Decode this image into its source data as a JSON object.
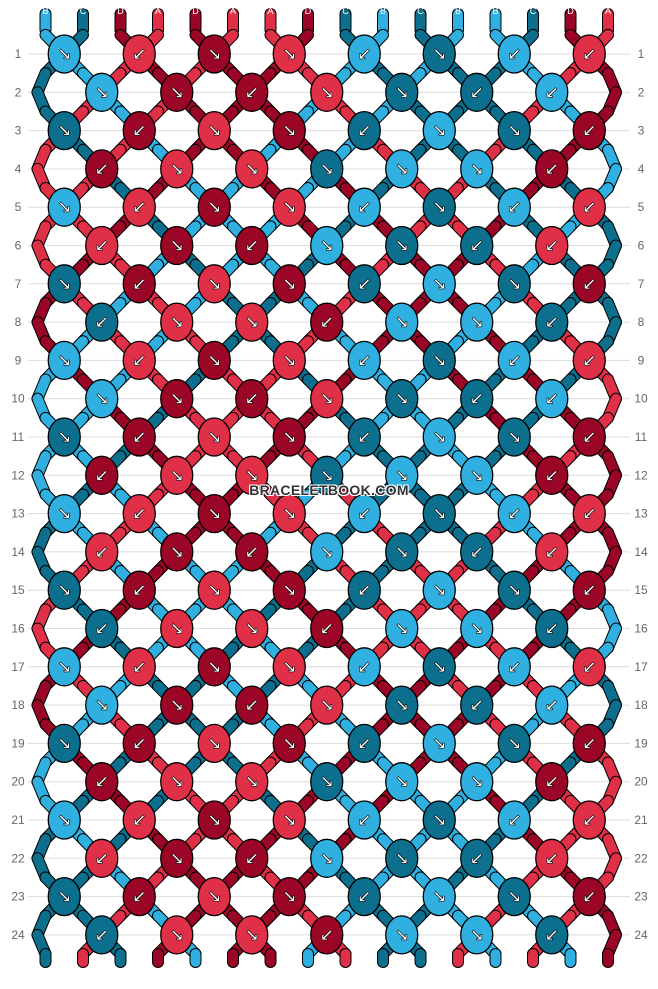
{
  "watermark": "BRACELETBOOK.COM",
  "colors": {
    "A": "#e03048",
    "B": "#30b0e0",
    "C": "#0d6f8e",
    "D": "#9c0626"
  },
  "strings_top": [
    "B",
    "C",
    "D",
    "A",
    "D",
    "A",
    "A",
    "D",
    "C",
    "B",
    "C",
    "B",
    "B",
    "C",
    "D",
    "A"
  ],
  "strings_bottom": [
    "B",
    "C",
    "D",
    "A",
    "D",
    "A",
    "A",
    "D",
    "C",
    "B",
    "C",
    "B",
    "B",
    "C",
    "D",
    "A"
  ],
  "row_numbers": [
    "1",
    "2",
    "3",
    "4",
    "5",
    "6",
    "7",
    "8",
    "9",
    "10",
    "11",
    "12",
    "13",
    "14",
    "15",
    "16",
    "17",
    "18",
    "19",
    "20",
    "21",
    "22",
    "23",
    "24"
  ],
  "knots": [
    [
      [
        "B",
        "↘"
      ],
      [
        "A",
        "↙"
      ],
      [
        "D",
        "↘"
      ],
      [
        "A",
        "↘"
      ],
      [
        "B",
        "↙"
      ],
      [
        "C",
        "↘"
      ],
      [
        "B",
        "↙"
      ],
      [
        "A",
        "↙"
      ]
    ],
    [
      [
        "B",
        "↘"
      ],
      [
        "D",
        "↘"
      ],
      [
        "D",
        "↙"
      ],
      [
        "A",
        "↘"
      ],
      [
        "C",
        "↘"
      ],
      [
        "C",
        "↙"
      ],
      [
        "B",
        "↙"
      ]
    ],
    [
      [
        "C",
        "↘"
      ],
      [
        "D",
        "↙"
      ],
      [
        "A",
        "↘"
      ],
      [
        "D",
        "↘"
      ],
      [
        "C",
        "↙"
      ],
      [
        "B",
        "↘"
      ],
      [
        "C",
        "↘"
      ],
      [
        "D",
        "↙"
      ]
    ],
    [
      [
        "D",
        "↙"
      ],
      [
        "A",
        "↘"
      ],
      [
        "A",
        "↘"
      ],
      [
        "C",
        "↘"
      ],
      [
        "B",
        "↘"
      ],
      [
        "B",
        "↘"
      ],
      [
        "D",
        "↙"
      ]
    ],
    [
      [
        "B",
        "↘"
      ],
      [
        "A",
        "↙"
      ],
      [
        "D",
        "↘"
      ],
      [
        "A",
        "↘"
      ],
      [
        "B",
        "↙"
      ],
      [
        "C",
        "↘"
      ],
      [
        "B",
        "↙"
      ],
      [
        "A",
        "↙"
      ]
    ],
    [
      [
        "A",
        "↙"
      ],
      [
        "D",
        "↘"
      ],
      [
        "D",
        "↙"
      ],
      [
        "B",
        "↘"
      ],
      [
        "C",
        "↘"
      ],
      [
        "C",
        "↙"
      ],
      [
        "A",
        "↙"
      ]
    ],
    [
      [
        "C",
        "↘"
      ],
      [
        "D",
        "↙"
      ],
      [
        "A",
        "↘"
      ],
      [
        "D",
        "↘"
      ],
      [
        "C",
        "↙"
      ],
      [
        "B",
        "↘"
      ],
      [
        "C",
        "↘"
      ],
      [
        "D",
        "↙"
      ]
    ],
    [
      [
        "C",
        "↙"
      ],
      [
        "A",
        "↘"
      ],
      [
        "A",
        "↘"
      ],
      [
        "D",
        "↙"
      ],
      [
        "B",
        "↘"
      ],
      [
        "B",
        "↘"
      ],
      [
        "C",
        "↙"
      ]
    ],
    [
      [
        "B",
        "↘"
      ],
      [
        "A",
        "↙"
      ],
      [
        "D",
        "↘"
      ],
      [
        "A",
        "↘"
      ],
      [
        "B",
        "↙"
      ],
      [
        "C",
        "↘"
      ],
      [
        "B",
        "↙"
      ],
      [
        "A",
        "↙"
      ]
    ],
    [
      [
        "B",
        "↘"
      ],
      [
        "D",
        "↘"
      ],
      [
        "D",
        "↙"
      ],
      [
        "A",
        "↘"
      ],
      [
        "C",
        "↘"
      ],
      [
        "C",
        "↙"
      ],
      [
        "B",
        "↙"
      ]
    ],
    [
      [
        "C",
        "↘"
      ],
      [
        "D",
        "↙"
      ],
      [
        "A",
        "↘"
      ],
      [
        "D",
        "↘"
      ],
      [
        "C",
        "↙"
      ],
      [
        "B",
        "↘"
      ],
      [
        "C",
        "↘"
      ],
      [
        "D",
        "↙"
      ]
    ],
    [
      [
        "D",
        "↙"
      ],
      [
        "A",
        "↘"
      ],
      [
        "A",
        "↘"
      ],
      [
        "C",
        "↘"
      ],
      [
        "B",
        "↘"
      ],
      [
        "B",
        "↘"
      ],
      [
        "D",
        "↙"
      ]
    ],
    [
      [
        "B",
        "↘"
      ],
      [
        "A",
        "↙"
      ],
      [
        "D",
        "↘"
      ],
      [
        "A",
        "↘"
      ],
      [
        "B",
        "↙"
      ],
      [
        "C",
        "↘"
      ],
      [
        "B",
        "↙"
      ],
      [
        "A",
        "↙"
      ]
    ],
    [
      [
        "A",
        "↙"
      ],
      [
        "D",
        "↘"
      ],
      [
        "D",
        "↙"
      ],
      [
        "B",
        "↘"
      ],
      [
        "C",
        "↘"
      ],
      [
        "C",
        "↙"
      ],
      [
        "A",
        "↙"
      ]
    ],
    [
      [
        "C",
        "↘"
      ],
      [
        "D",
        "↙"
      ],
      [
        "A",
        "↘"
      ],
      [
        "D",
        "↘"
      ],
      [
        "C",
        "↙"
      ],
      [
        "B",
        "↘"
      ],
      [
        "C",
        "↘"
      ],
      [
        "D",
        "↙"
      ]
    ],
    [
      [
        "C",
        "↙"
      ],
      [
        "A",
        "↘"
      ],
      [
        "A",
        "↘"
      ],
      [
        "D",
        "↙"
      ],
      [
        "B",
        "↘"
      ],
      [
        "B",
        "↘"
      ],
      [
        "C",
        "↙"
      ]
    ],
    [
      [
        "B",
        "↘"
      ],
      [
        "A",
        "↙"
      ],
      [
        "D",
        "↘"
      ],
      [
        "A",
        "↘"
      ],
      [
        "B",
        "↙"
      ],
      [
        "C",
        "↘"
      ],
      [
        "B",
        "↙"
      ],
      [
        "A",
        "↙"
      ]
    ],
    [
      [
        "B",
        "↘"
      ],
      [
        "D",
        "↘"
      ],
      [
        "D",
        "↙"
      ],
      [
        "A",
        "↘"
      ],
      [
        "C",
        "↘"
      ],
      [
        "C",
        "↙"
      ],
      [
        "B",
        "↙"
      ]
    ],
    [
      [
        "C",
        "↘"
      ],
      [
        "D",
        "↙"
      ],
      [
        "A",
        "↘"
      ],
      [
        "D",
        "↘"
      ],
      [
        "C",
        "↙"
      ],
      [
        "B",
        "↘"
      ],
      [
        "C",
        "↘"
      ],
      [
        "D",
        "↙"
      ]
    ],
    [
      [
        "D",
        "↙"
      ],
      [
        "A",
        "↘"
      ],
      [
        "A",
        "↘"
      ],
      [
        "C",
        "↘"
      ],
      [
        "B",
        "↘"
      ],
      [
        "B",
        "↘"
      ],
      [
        "D",
        "↙"
      ]
    ],
    [
      [
        "B",
        "↘"
      ],
      [
        "A",
        "↙"
      ],
      [
        "D",
        "↘"
      ],
      [
        "A",
        "↘"
      ],
      [
        "B",
        "↙"
      ],
      [
        "C",
        "↘"
      ],
      [
        "B",
        "↙"
      ],
      [
        "A",
        "↙"
      ]
    ],
    [
      [
        "A",
        "↙"
      ],
      [
        "D",
        "↘"
      ],
      [
        "D",
        "↙"
      ],
      [
        "B",
        "↘"
      ],
      [
        "C",
        "↘"
      ],
      [
        "C",
        "↙"
      ],
      [
        "A",
        "↙"
      ]
    ],
    [
      [
        "C",
        "↘"
      ],
      [
        "D",
        "↙"
      ],
      [
        "A",
        "↘"
      ],
      [
        "D",
        "↘"
      ],
      [
        "C",
        "↙"
      ],
      [
        "B",
        "↘"
      ],
      [
        "C",
        "↘"
      ],
      [
        "D",
        "↙"
      ]
    ],
    [
      [
        "C",
        "↙"
      ],
      [
        "A",
        "↘"
      ],
      [
        "A",
        "↘"
      ],
      [
        "D",
        "↙"
      ],
      [
        "B",
        "↘"
      ],
      [
        "B",
        "↘"
      ],
      [
        "C",
        "↙"
      ]
    ]
  ]
}
